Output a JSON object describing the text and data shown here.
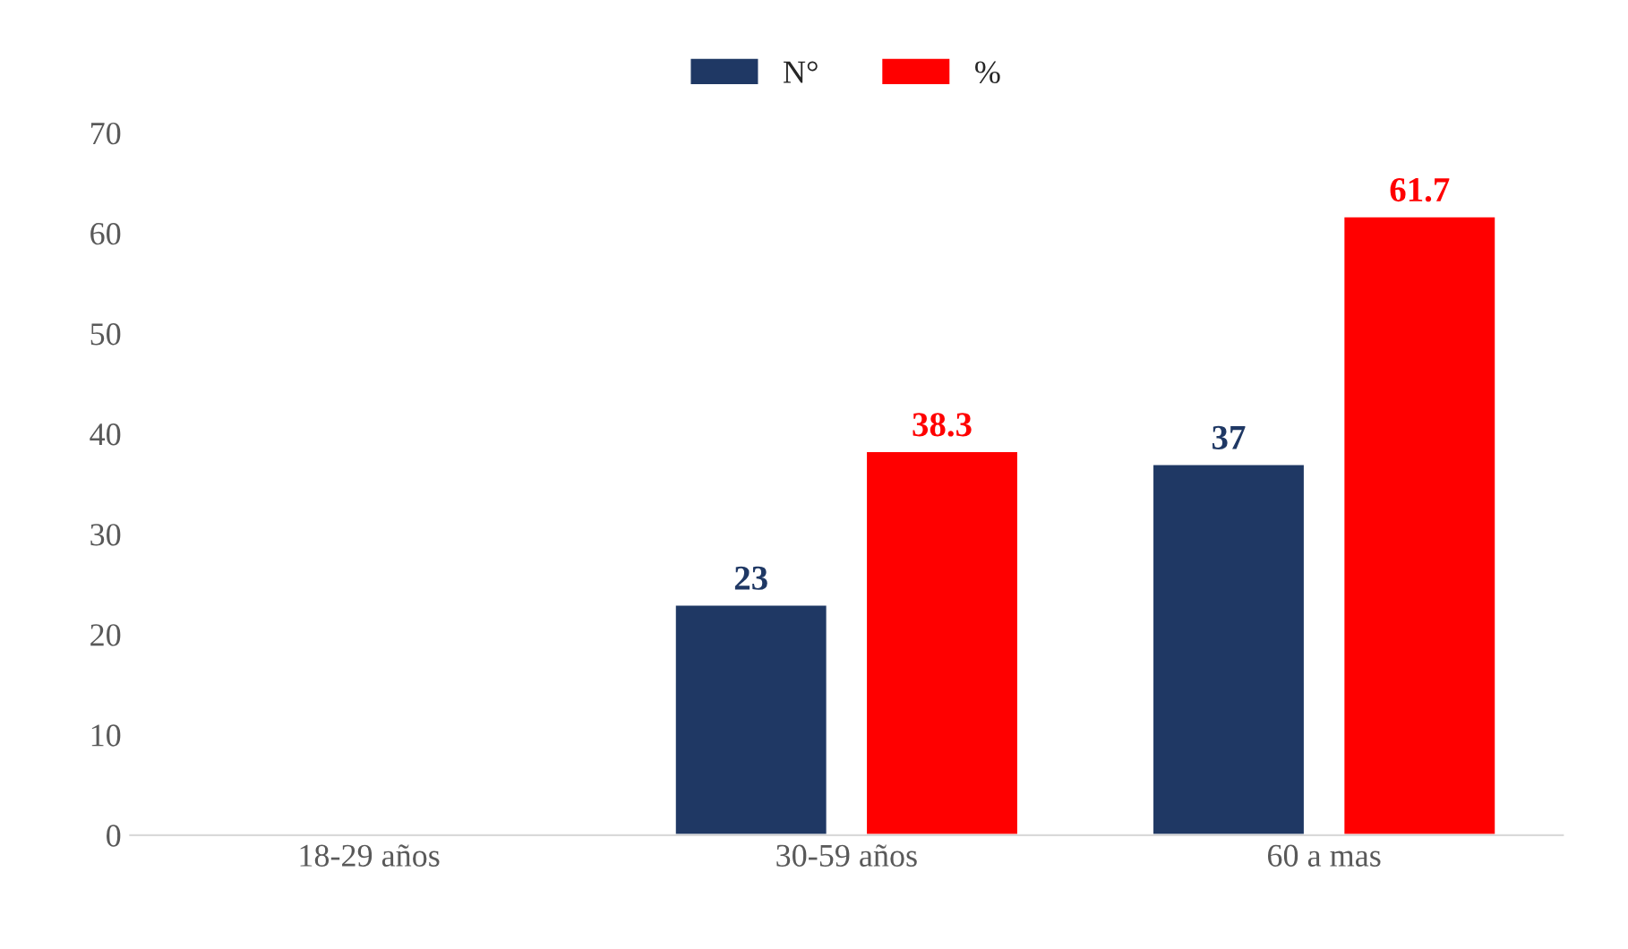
{
  "chart_data": {
    "type": "bar",
    "categories": [
      "18-29 años",
      "30-59 años",
      "60 a mas"
    ],
    "series": [
      {
        "name": "N°",
        "color": "#1f3864",
        "values": [
          null,
          23,
          37
        ]
      },
      {
        "name": "%",
        "color": "#ff0000",
        "values": [
          null,
          38.3,
          61.7
        ]
      }
    ],
    "ylim": [
      0,
      70
    ],
    "yticks": [
      0,
      10,
      20,
      30,
      40,
      50,
      60,
      70
    ],
    "data_labels": true,
    "legend": "top",
    "grid": false
  }
}
